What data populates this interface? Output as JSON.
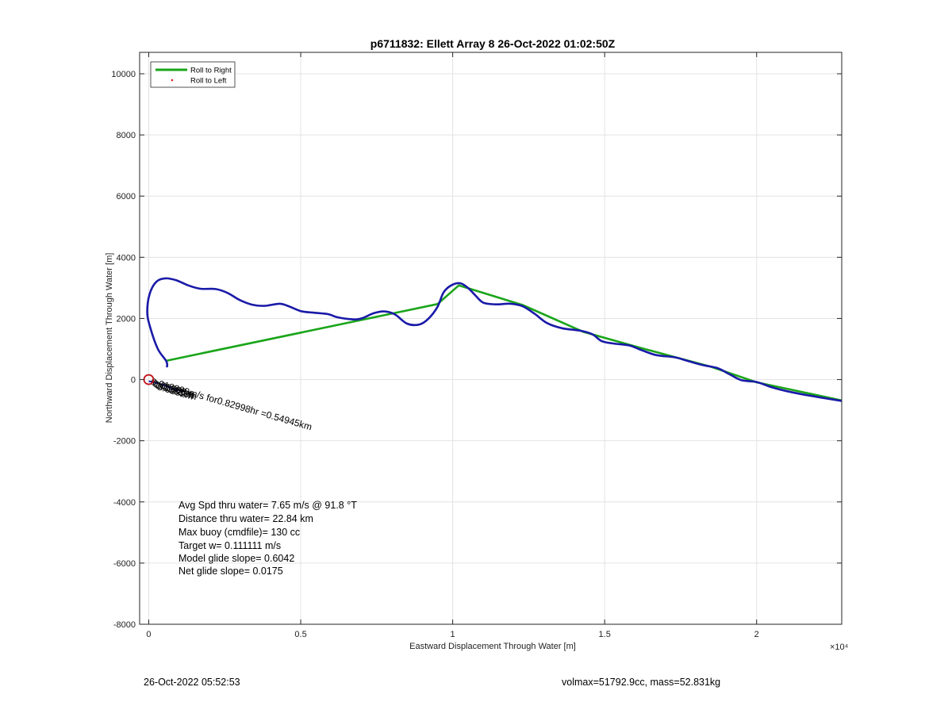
{
  "chart_data": {
    "type": "line",
    "title": "p6711832: Ellett Array 8 26-Oct-2022 01:02:50Z",
    "xlabel": "Eastward Displacement Through Water [m]",
    "ylabel": "Northward Displacement Through Water [m]",
    "xlim": [
      -300,
      22800
    ],
    "ylim": [
      -8000,
      10700
    ],
    "x_exponent_label": "×10⁴",
    "x_ticks": [
      0,
      5000,
      10000,
      15000,
      20000
    ],
    "x_tick_labels": [
      "0",
      "0.5",
      "1",
      "1.5",
      "2"
    ],
    "y_ticks": [
      -8000,
      -6000,
      -4000,
      -2000,
      0,
      2000,
      4000,
      6000,
      8000,
      10000
    ],
    "y_tick_labels": [
      "-8000",
      "-6000",
      "-4000",
      "-2000",
      "0",
      "2000",
      "4000",
      "6000",
      "8000",
      "10000"
    ],
    "grid": true,
    "legend_position": "top-left",
    "legend": [
      {
        "label": "Roll to Right",
        "color": "#1aa51a",
        "style": "line"
      },
      {
        "label": "Roll to Left",
        "color": "#e02020",
        "style": "dot"
      }
    ],
    "series": [
      {
        "name": "Roll to Right",
        "color": "#1aa51a",
        "points": [
          [
            600,
            620
          ],
          [
            9500,
            2470
          ],
          [
            10200,
            3080
          ],
          [
            12300,
            2440
          ],
          [
            14300,
            1560
          ],
          [
            16200,
            1030
          ],
          [
            18500,
            420
          ],
          [
            20000,
            -90
          ],
          [
            22800,
            -680
          ]
        ]
      },
      {
        "color": "#1a1aa8",
        "points": [
          [
            600,
            400
          ],
          [
            580,
            600
          ],
          [
            300,
            1000
          ],
          [
            50,
            1700
          ],
          [
            -50,
            2200
          ],
          [
            30,
            2800
          ],
          [
            250,
            3200
          ],
          [
            550,
            3310
          ],
          [
            900,
            3250
          ],
          [
            1300,
            3080
          ],
          [
            1700,
            2970
          ],
          [
            2200,
            2960
          ],
          [
            2600,
            2830
          ],
          [
            3000,
            2600
          ],
          [
            3400,
            2450
          ],
          [
            3800,
            2410
          ],
          [
            4300,
            2480
          ],
          [
            4600,
            2400
          ],
          [
            5000,
            2240
          ],
          [
            5400,
            2190
          ],
          [
            5900,
            2140
          ],
          [
            6200,
            2040
          ],
          [
            6700,
            1970
          ],
          [
            7000,
            2000
          ],
          [
            7400,
            2170
          ],
          [
            7750,
            2230
          ],
          [
            8100,
            2130
          ],
          [
            8500,
            1830
          ],
          [
            8900,
            1800
          ],
          [
            9200,
            1990
          ],
          [
            9500,
            2380
          ],
          [
            9700,
            2850
          ],
          [
            9950,
            3080
          ],
          [
            10250,
            3150
          ],
          [
            10500,
            3000
          ],
          [
            10750,
            2750
          ],
          [
            11000,
            2520
          ],
          [
            11400,
            2460
          ],
          [
            11900,
            2480
          ],
          [
            12300,
            2400
          ],
          [
            12700,
            2150
          ],
          [
            13100,
            1850
          ],
          [
            13600,
            1680
          ],
          [
            14200,
            1600
          ],
          [
            14600,
            1480
          ],
          [
            14900,
            1260
          ],
          [
            15300,
            1180
          ],
          [
            15800,
            1120
          ],
          [
            16200,
            970
          ],
          [
            16700,
            800
          ],
          [
            17300,
            730
          ],
          [
            17700,
            620
          ],
          [
            18200,
            480
          ],
          [
            18700,
            380
          ],
          [
            19100,
            180
          ],
          [
            19500,
            -20
          ],
          [
            20000,
            -80
          ],
          [
            20500,
            -250
          ],
          [
            21000,
            -380
          ],
          [
            21600,
            -500
          ],
          [
            22200,
            -600
          ],
          [
            22800,
            -700
          ]
        ]
      },
      {
        "color": "#1a1aa8",
        "points": [
          [
            0,
            -50
          ],
          [
            400,
            -150
          ],
          [
            800,
            -300
          ],
          [
            1200,
            -400
          ]
        ]
      }
    ],
    "start_marker": {
      "x": 0,
      "y": 0,
      "color": "#c0141a"
    },
    "annotation": "0.018399m/s for0.82998hr =0.54945km",
    "overlap_labels": [
      "0.01838m",
      "0.01921m",
      "0.01838m",
      "0.0132m"
    ]
  },
  "stats": [
    "Avg Spd thru water=  7.65 m/s @  91.8 °T",
    "Distance thru water= 22.84 km",
    "Max buoy (cmdfile)= 130 cc",
    "Target w= 0.111111 m/s",
    "Model glide slope= 0.6042",
    "Net glide slope= 0.0175"
  ],
  "footer": {
    "left": "26-Oct-2022 05:52:53",
    "right": "volmax=51792.9cc, mass=52.831kg"
  }
}
